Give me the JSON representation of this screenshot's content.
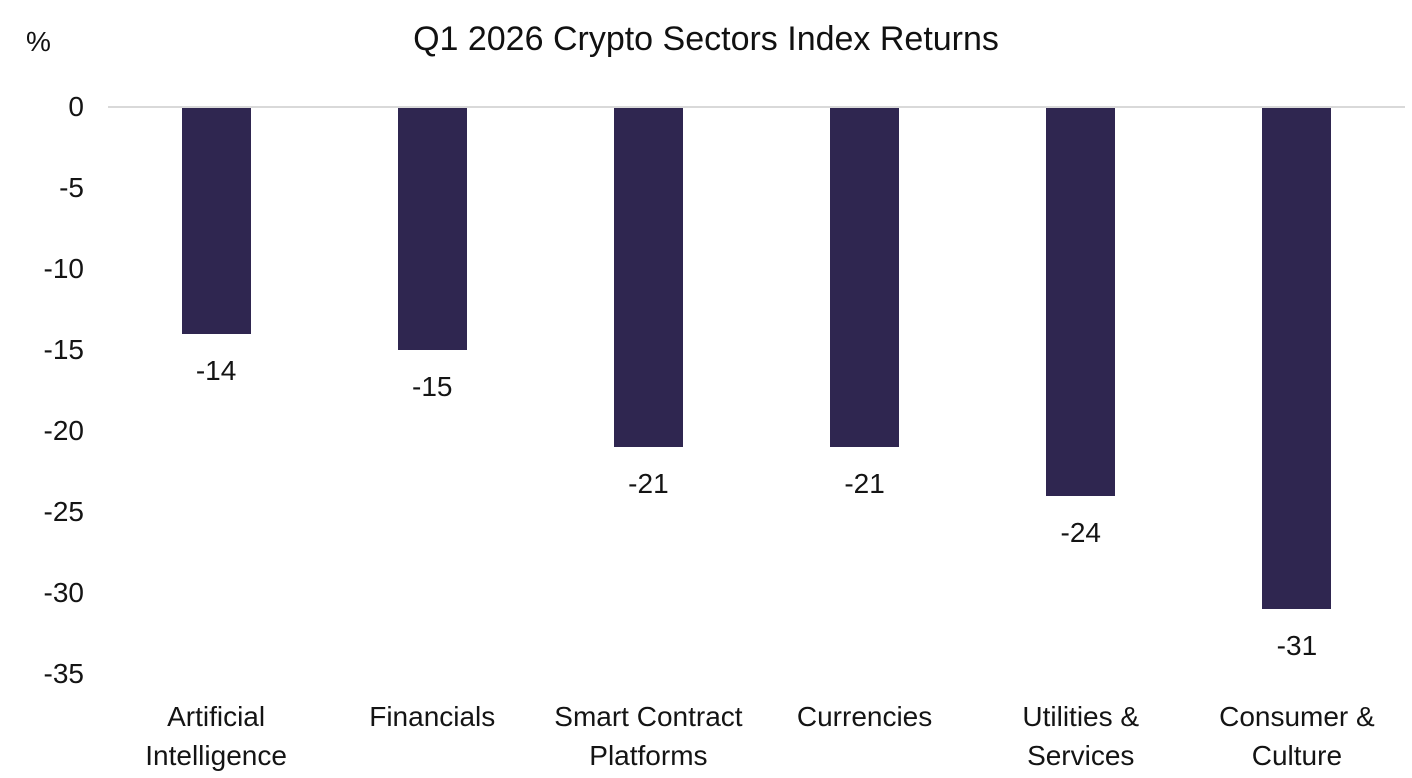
{
  "chart_data": {
    "type": "bar",
    "title": "Q1 2026 Crypto Sectors Index Returns",
    "ylabel": "%",
    "xlabel": "",
    "categories": [
      "Artificial Intelligence",
      "Financials",
      "Smart Contract Platforms",
      "Currencies",
      "Utilities & Services",
      "Consumer & Culture"
    ],
    "values": [
      -14,
      -15,
      -21,
      -21,
      -24,
      -31
    ],
    "data_labels": [
      "-14",
      "-15",
      "-21",
      "-21",
      "-24",
      "-31"
    ],
    "ylim": [
      -35,
      0
    ],
    "yticks": [
      0,
      -5,
      -10,
      -15,
      -20,
      -25,
      -30,
      -35
    ],
    "grid": "zero-baseline-only",
    "legend": "none",
    "orientation": "vertical",
    "colors": {
      "bar": "#2F2650",
      "baseline": "#D9D9D9",
      "text": "#141414",
      "background": "#FFFFFF"
    }
  }
}
